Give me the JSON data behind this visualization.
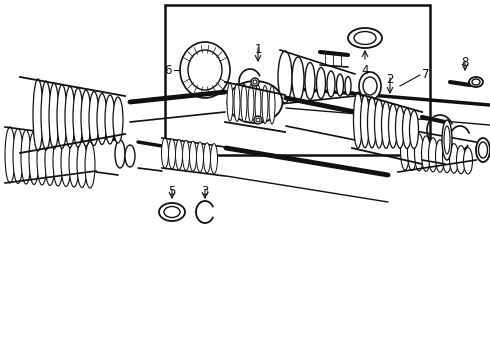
{
  "background_color": "#ffffff",
  "line_color": "#111111",
  "fig_width": 4.9,
  "fig_height": 3.6,
  "dpi": 100
}
